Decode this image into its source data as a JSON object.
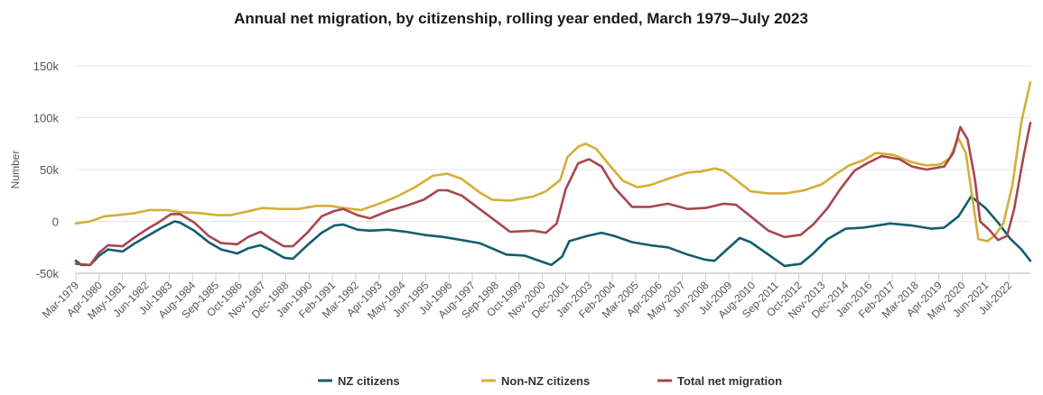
{
  "chart_data": {
    "type": "line",
    "title": "Annual net migration, by citizenship, rolling year ended, March 1979–July 2023",
    "xlabel": "",
    "ylabel": "Number",
    "ylim": [
      -50000,
      150000
    ],
    "yticks": [
      -50000,
      0,
      50000,
      100000,
      150000
    ],
    "ytick_labels": [
      "-50k",
      "0",
      "50k",
      "100k",
      "150k"
    ],
    "xlim": [
      "1979-03",
      "2023-07"
    ],
    "xtick_labels": [
      "Mar-1979",
      "Apr-1980",
      "May-1981",
      "Jun-1982",
      "Jul-1983",
      "Aug-1984",
      "Sep-1985",
      "Oct-1986",
      "Nov-1987",
      "Dec-1988",
      "Jan-1990",
      "Feb-1991",
      "Mar-1992",
      "Apr-1993",
      "May-1994",
      "Jun-1995",
      "Jul-1996",
      "Aug-1997",
      "Sep-1998",
      "Oct-1999",
      "Nov-2000",
      "Dec-2001",
      "Jan-2003",
      "Feb-2004",
      "Mar-2005",
      "Apr-2006",
      "May-2007",
      "Jun-2008",
      "Jul-2009",
      "Aug-2010",
      "Sep-2011",
      "Oct-2012",
      "Nov-2013",
      "Dec-2014",
      "Jan-2016",
      "Feb-2017",
      "Mar-2018",
      "Apr-2019",
      "May-2020",
      "Jun-2021",
      "Jul-2022"
    ],
    "grid": true,
    "legend_position": "bottom",
    "series": [
      {
        "name": "NZ citizens",
        "color": "#135e6e",
        "points": [
          [
            "1979-03",
            -38000
          ],
          [
            "1979-06",
            -42000
          ],
          [
            "1979-11",
            -42000
          ],
          [
            "1980-04",
            -33000
          ],
          [
            "1980-09",
            -27000
          ],
          [
            "1981-05",
            -29000
          ],
          [
            "1981-12",
            -21000
          ],
          [
            "1982-08",
            -13000
          ],
          [
            "1983-03",
            -6000
          ],
          [
            "1983-10",
            0
          ],
          [
            "1984-01",
            -1000
          ],
          [
            "1984-09",
            -9000
          ],
          [
            "1985-05",
            -20000
          ],
          [
            "1985-12",
            -27000
          ],
          [
            "1986-09",
            -31000
          ],
          [
            "1987-03",
            -26000
          ],
          [
            "1987-10",
            -23000
          ],
          [
            "1988-04",
            -28000
          ],
          [
            "1988-11",
            -35000
          ],
          [
            "1989-04",
            -36000
          ],
          [
            "1989-12",
            -23000
          ],
          [
            "1990-08",
            -11000
          ],
          [
            "1991-03",
            -4000
          ],
          [
            "1991-08",
            -3000
          ],
          [
            "1992-04",
            -8000
          ],
          [
            "1992-11",
            -9000
          ],
          [
            "1993-09",
            -8000
          ],
          [
            "1994-07",
            -10000
          ],
          [
            "1995-05",
            -13000
          ],
          [
            "1996-04",
            -15000
          ],
          [
            "1997-02",
            -18000
          ],
          [
            "1997-12",
            -21000
          ],
          [
            "1998-07",
            -26000
          ],
          [
            "1999-03",
            -32000
          ],
          [
            "2000-01",
            -33000
          ],
          [
            "2000-11",
            -39000
          ],
          [
            "2001-04",
            -42000
          ],
          [
            "2001-10",
            -34000
          ],
          [
            "2002-02",
            -19000
          ],
          [
            "2002-12",
            -14000
          ],
          [
            "2003-08",
            -11000
          ],
          [
            "2004-03",
            -14000
          ],
          [
            "2005-01",
            -20000
          ],
          [
            "2005-11",
            -23000
          ],
          [
            "2006-09",
            -25000
          ],
          [
            "2007-08",
            -32000
          ],
          [
            "2008-06",
            -37000
          ],
          [
            "2008-11",
            -38000
          ],
          [
            "2009-04",
            -30000
          ],
          [
            "2010-01",
            -16000
          ],
          [
            "2010-07",
            -20000
          ],
          [
            "2011-05",
            -32000
          ],
          [
            "2012-02",
            -43000
          ],
          [
            "2012-11",
            -41000
          ],
          [
            "2013-06",
            -31000
          ],
          [
            "2014-02",
            -17000
          ],
          [
            "2014-12",
            -7000
          ],
          [
            "2015-10",
            -6000
          ],
          [
            "2017-01",
            -2000
          ],
          [
            "2018-01",
            -4000
          ],
          [
            "2018-12",
            -7000
          ],
          [
            "2019-07",
            -6000
          ],
          [
            "2020-03",
            5000
          ],
          [
            "2020-10",
            24000
          ],
          [
            "2021-06",
            13000
          ],
          [
            "2022-01",
            -1000
          ],
          [
            "2022-08",
            -17000
          ],
          [
            "2023-02",
            -27000
          ],
          [
            "2023-07",
            -38000
          ]
        ]
      },
      {
        "name": "Non-NZ citizens",
        "color": "#d4af37",
        "points": [
          [
            "1979-03",
            -2000
          ],
          [
            "1979-11",
            0
          ],
          [
            "1980-07",
            5000
          ],
          [
            "1981-02",
            6000
          ],
          [
            "1981-12",
            8000
          ],
          [
            "1982-08",
            11000
          ],
          [
            "1983-06",
            11000
          ],
          [
            "1984-01",
            9000
          ],
          [
            "1984-12",
            8000
          ],
          [
            "1985-10",
            6000
          ],
          [
            "1986-05",
            6000
          ],
          [
            "1987-01",
            9000
          ],
          [
            "1987-11",
            13000
          ],
          [
            "1988-09",
            12000
          ],
          [
            "1989-07",
            12000
          ],
          [
            "1990-05",
            15000
          ],
          [
            "1991-01",
            15000
          ],
          [
            "1991-08",
            13000
          ],
          [
            "1992-06",
            11000
          ],
          [
            "1993-04",
            17000
          ],
          [
            "1994-02",
            24000
          ],
          [
            "1994-12",
            33000
          ],
          [
            "1995-10",
            44000
          ],
          [
            "1996-06",
            46000
          ],
          [
            "1997-02",
            41000
          ],
          [
            "1997-12",
            28000
          ],
          [
            "1998-07",
            21000
          ],
          [
            "1999-05",
            20000
          ],
          [
            "2000-06",
            24000
          ],
          [
            "2001-01",
            29000
          ],
          [
            "2001-09",
            40000
          ],
          [
            "2002-01",
            62000
          ],
          [
            "2002-07",
            72000
          ],
          [
            "2002-11",
            75000
          ],
          [
            "2003-05",
            70000
          ],
          [
            "2004-01",
            53000
          ],
          [
            "2004-08",
            39000
          ],
          [
            "2005-04",
            33000
          ],
          [
            "2005-11",
            35000
          ],
          [
            "2006-09",
            41000
          ],
          [
            "2007-08",
            47000
          ],
          [
            "2008-03",
            48000
          ],
          [
            "2008-11",
            51000
          ],
          [
            "2009-04",
            49000
          ],
          [
            "2009-11",
            40000
          ],
          [
            "2010-07",
            29000
          ],
          [
            "2011-05",
            27000
          ],
          [
            "2012-03",
            27000
          ],
          [
            "2013-01",
            30000
          ],
          [
            "2013-11",
            36000
          ],
          [
            "2014-07",
            46000
          ],
          [
            "2015-02",
            54000
          ],
          [
            "2015-10",
            59000
          ],
          [
            "2016-05",
            66000
          ],
          [
            "2017-03",
            64000
          ],
          [
            "2018-01",
            57000
          ],
          [
            "2018-09",
            54000
          ],
          [
            "2019-05",
            55000
          ],
          [
            "2019-10",
            61000
          ],
          [
            "2020-03",
            80000
          ],
          [
            "2020-07",
            66000
          ],
          [
            "2020-10",
            31000
          ],
          [
            "2021-02",
            -17000
          ],
          [
            "2021-07",
            -19000
          ],
          [
            "2021-11",
            -14000
          ],
          [
            "2022-04",
            -2000
          ],
          [
            "2022-09",
            35000
          ],
          [
            "2023-02",
            96000
          ],
          [
            "2023-07",
            134000
          ]
        ]
      },
      {
        "name": "Total net migration",
        "color": "#a8464f",
        "points": [
          [
            "1979-03",
            -41000
          ],
          [
            "1979-11",
            -42000
          ],
          [
            "1980-04",
            -30000
          ],
          [
            "1980-09",
            -23000
          ],
          [
            "1981-05",
            -24000
          ],
          [
            "1981-12",
            -15000
          ],
          [
            "1982-08",
            -6000
          ],
          [
            "1983-01",
            -1000
          ],
          [
            "1983-08",
            7000
          ],
          [
            "1984-01",
            7000
          ],
          [
            "1984-09",
            -1000
          ],
          [
            "1985-05",
            -14000
          ],
          [
            "1985-12",
            -21000
          ],
          [
            "1986-09",
            -22000
          ],
          [
            "1987-03",
            -15000
          ],
          [
            "1987-10",
            -10000
          ],
          [
            "1988-04",
            -17000
          ],
          [
            "1988-11",
            -24000
          ],
          [
            "1989-04",
            -24000
          ],
          [
            "1989-12",
            -11000
          ],
          [
            "1990-08",
            5000
          ],
          [
            "1991-03",
            10000
          ],
          [
            "1991-08",
            12000
          ],
          [
            "1992-04",
            6000
          ],
          [
            "1992-11",
            3000
          ],
          [
            "1993-09",
            10000
          ],
          [
            "1994-07",
            15000
          ],
          [
            "1995-05",
            21000
          ],
          [
            "1996-01",
            30000
          ],
          [
            "1996-06",
            30000
          ],
          [
            "1997-02",
            25000
          ],
          [
            "1997-12",
            12000
          ],
          [
            "1998-07",
            3000
          ],
          [
            "1999-05",
            -10000
          ],
          [
            "2000-06",
            -9000
          ],
          [
            "2001-01",
            -11000
          ],
          [
            "2001-07",
            -2000
          ],
          [
            "2001-12",
            31000
          ],
          [
            "2002-07",
            56000
          ],
          [
            "2003-01",
            60000
          ],
          [
            "2003-08",
            53000
          ],
          [
            "2004-03",
            33000
          ],
          [
            "2005-01",
            14000
          ],
          [
            "2005-11",
            14000
          ],
          [
            "2006-09",
            17000
          ],
          [
            "2007-08",
            12000
          ],
          [
            "2008-06",
            13000
          ],
          [
            "2009-04",
            17000
          ],
          [
            "2009-11",
            16000
          ],
          [
            "2010-07",
            5000
          ],
          [
            "2011-05",
            -9000
          ],
          [
            "2012-02",
            -15000
          ],
          [
            "2012-11",
            -13000
          ],
          [
            "2013-06",
            -3000
          ],
          [
            "2014-02",
            13000
          ],
          [
            "2014-09",
            31000
          ],
          [
            "2015-05",
            49000
          ],
          [
            "2015-12",
            56000
          ],
          [
            "2016-08",
            63000
          ],
          [
            "2017-06",
            60000
          ],
          [
            "2018-01",
            53000
          ],
          [
            "2018-09",
            50000
          ],
          [
            "2019-07",
            53000
          ],
          [
            "2019-12",
            66000
          ],
          [
            "2020-04",
            91000
          ],
          [
            "2020-08",
            79000
          ],
          [
            "2020-12",
            42000
          ],
          [
            "2021-03",
            0
          ],
          [
            "2021-08",
            -8000
          ],
          [
            "2022-01",
            -18000
          ],
          [
            "2022-06",
            -14000
          ],
          [
            "2022-10",
            12000
          ],
          [
            "2023-03",
            61000
          ],
          [
            "2023-07",
            95000
          ]
        ]
      }
    ]
  }
}
